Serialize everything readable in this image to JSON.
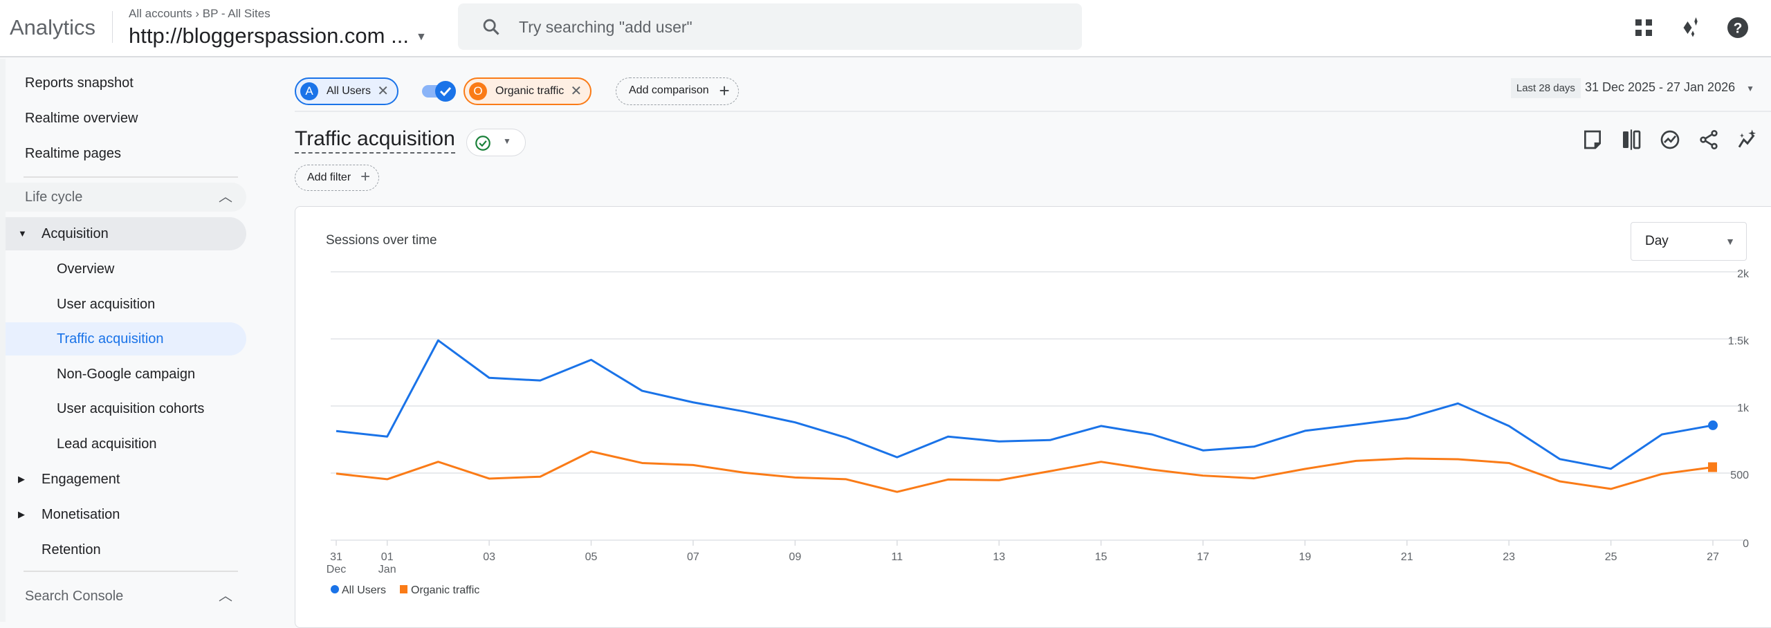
{
  "header": {
    "app_name": "Analytics",
    "breadcrumb": "All accounts › BP - All Sites",
    "property": "http://bloggerspassion.com ...",
    "search_placeholder": "Try searching \"add user\"",
    "icons": [
      "apps-grid-icon",
      "sparkle-icon",
      "help-icon"
    ]
  },
  "sidebar": {
    "top_items": [
      "Reports snapshot",
      "Realtime overview",
      "Realtime pages"
    ],
    "lifecycle_label": "Life cycle",
    "acquisition_label": "Acquisition",
    "acquisition_items": [
      "Overview",
      "User acquisition",
      "Traffic acquisition",
      "Non-Google campaign",
      "User acquisition cohorts",
      "Lead acquisition"
    ],
    "active_item": "Traffic acquisition",
    "other_sections": [
      "Engagement",
      "Monetisation",
      "Retention"
    ],
    "search_console_label": "Search Console"
  },
  "comparisons": {
    "all_users": {
      "badge": "A",
      "label": "All Users",
      "color": "#1a73e8"
    },
    "organic": {
      "badge": "O",
      "label": "Organic traffic",
      "color": "#fa7b17"
    },
    "add_label": "Add comparison",
    "toggle_on": true
  },
  "date_range": {
    "preset": "Last 28 days",
    "range": "31 Dec 2025 - 27 Jan 2026"
  },
  "report": {
    "title": "Traffic acquisition",
    "add_filter": "Add filter",
    "toolbar_icons": [
      "note-icon",
      "compare-columns-icon",
      "insights-icon",
      "share-icon",
      "anomaly-icon"
    ]
  },
  "card": {
    "title": "Sessions over time",
    "granularity": "Day"
  },
  "chart_data": {
    "type": "line",
    "x": [
      "31 Dec",
      "01 Jan",
      "02",
      "03",
      "04",
      "05",
      "06",
      "07",
      "08",
      "09",
      "10",
      "11",
      "12",
      "13",
      "14",
      "15",
      "16",
      "17",
      "18",
      "19",
      "20",
      "21",
      "22",
      "23",
      "24",
      "25",
      "26",
      "27"
    ],
    "x_tick_labels": [
      {
        "top": "31",
        "bottom": "Dec"
      },
      {
        "top": "01",
        "bottom": "Jan"
      },
      {
        "top": "03"
      },
      {
        "top": "05"
      },
      {
        "top": "07"
      },
      {
        "top": "09"
      },
      {
        "top": "11"
      },
      {
        "top": "13"
      },
      {
        "top": "15"
      },
      {
        "top": "17"
      },
      {
        "top": "19"
      },
      {
        "top": "21"
      },
      {
        "top": "23"
      },
      {
        "top": "25"
      },
      {
        "top": "27"
      }
    ],
    "y_ticks": [
      "0",
      "500",
      "1k",
      "1.5k",
      "2k"
    ],
    "ylim": [
      0,
      2000
    ],
    "y_axis_side": "right",
    "grid": true,
    "legend_position": "bottom-left",
    "series": [
      {
        "name": "All Users",
        "color": "#1a73e8",
        "marker": "circle",
        "values": [
          813,
          772,
          1489,
          1210,
          1190,
          1344,
          1113,
          1027,
          959,
          878,
          764,
          618,
          772,
          736,
          746,
          851,
          788,
          669,
          697,
          815,
          861,
          909,
          1019,
          851,
          604,
          532,
          788,
          856
        ]
      },
      {
        "name": "Organic traffic",
        "color": "#fa7b17",
        "marker": "square",
        "values": [
          496,
          454,
          584,
          459,
          473,
          661,
          575,
          560,
          503,
          467,
          454,
          360,
          452,
          447,
          514,
          584,
          526,
          481,
          461,
          531,
          591,
          609,
          603,
          575,
          438,
          382,
          493,
          544
        ]
      }
    ]
  }
}
